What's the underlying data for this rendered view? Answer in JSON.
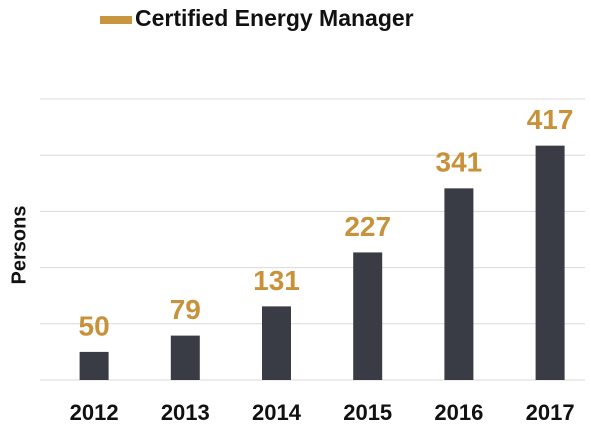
{
  "chart_data": {
    "type": "bar",
    "y_label": "Persons",
    "categories": [
      "2012",
      "2013",
      "2014",
      "2015",
      "2016",
      "2017"
    ],
    "series": [
      {
        "name": "Certified Energy Manager",
        "color": "#393c45",
        "legend_color": "#c8963e",
        "label_color": "#c8923a",
        "values": [
          50,
          79,
          131,
          227,
          341,
          417
        ]
      }
    ],
    "ylim": [
      0,
      500
    ],
    "yticks": [
      0,
      100,
      200,
      300,
      400,
      500
    ],
    "grid": true,
    "data_labels": true,
    "legend": "top"
  }
}
